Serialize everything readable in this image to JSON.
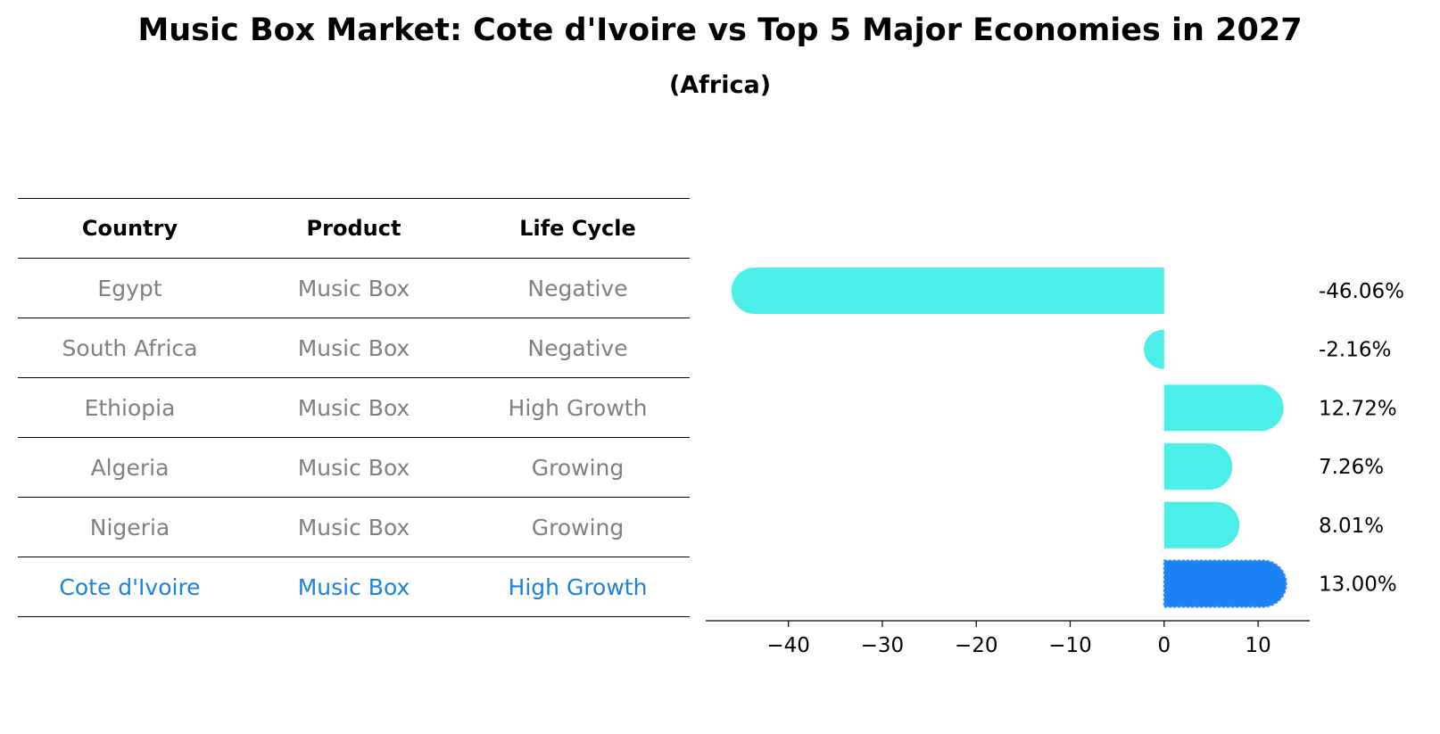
{
  "title": "Music Box Market: Cote d'Ivoire vs Top 5 Major Economies in 2027",
  "subtitle": "(Africa)",
  "table": {
    "headers": [
      "Country",
      "Product",
      "Life Cycle"
    ],
    "rows": [
      {
        "country": "Egypt",
        "product": "Music Box",
        "life_cycle": "Negative"
      },
      {
        "country": "South Africa",
        "product": "Music Box",
        "life_cycle": "Negative"
      },
      {
        "country": "Ethiopia",
        "product": "Music Box",
        "life_cycle": "High Growth"
      },
      {
        "country": "Algeria",
        "product": "Music Box",
        "life_cycle": "Growing"
      },
      {
        "country": "Nigeria",
        "product": "Music Box",
        "life_cycle": "Growing"
      },
      {
        "country": "Cote d'Ivoire",
        "product": "Music Box",
        "life_cycle": "High Growth"
      }
    ]
  },
  "chart_data": {
    "type": "bar",
    "orientation": "horizontal",
    "title": "Music Box Market: Cote d'Ivoire vs Top 5 Major Economies in 2027",
    "subtitle": "(Africa)",
    "categories": [
      "Egypt",
      "South Africa",
      "Ethiopia",
      "Algeria",
      "Nigeria",
      "Cote d'Ivoire"
    ],
    "values": [
      -46.06,
      -2.16,
      12.72,
      7.26,
      8.01,
      13.0
    ],
    "labels": [
      "-46.06%",
      "-2.16%",
      "12.72%",
      "7.26%",
      "8.01%",
      "13.00%"
    ],
    "highlight": "Cote d'Ivoire",
    "xlim": [
      -48.8,
      15.5
    ],
    "xticks": [
      -40,
      -30,
      -20,
      -10,
      0,
      10
    ],
    "xtick_labels": [
      "−40",
      "−30",
      "−20",
      "−10",
      "0",
      "10"
    ],
    "xlabel": "",
    "ylabel": "",
    "grid": false,
    "colors": {
      "default": "#4beee8",
      "highlight": "#1b82f5"
    }
  }
}
